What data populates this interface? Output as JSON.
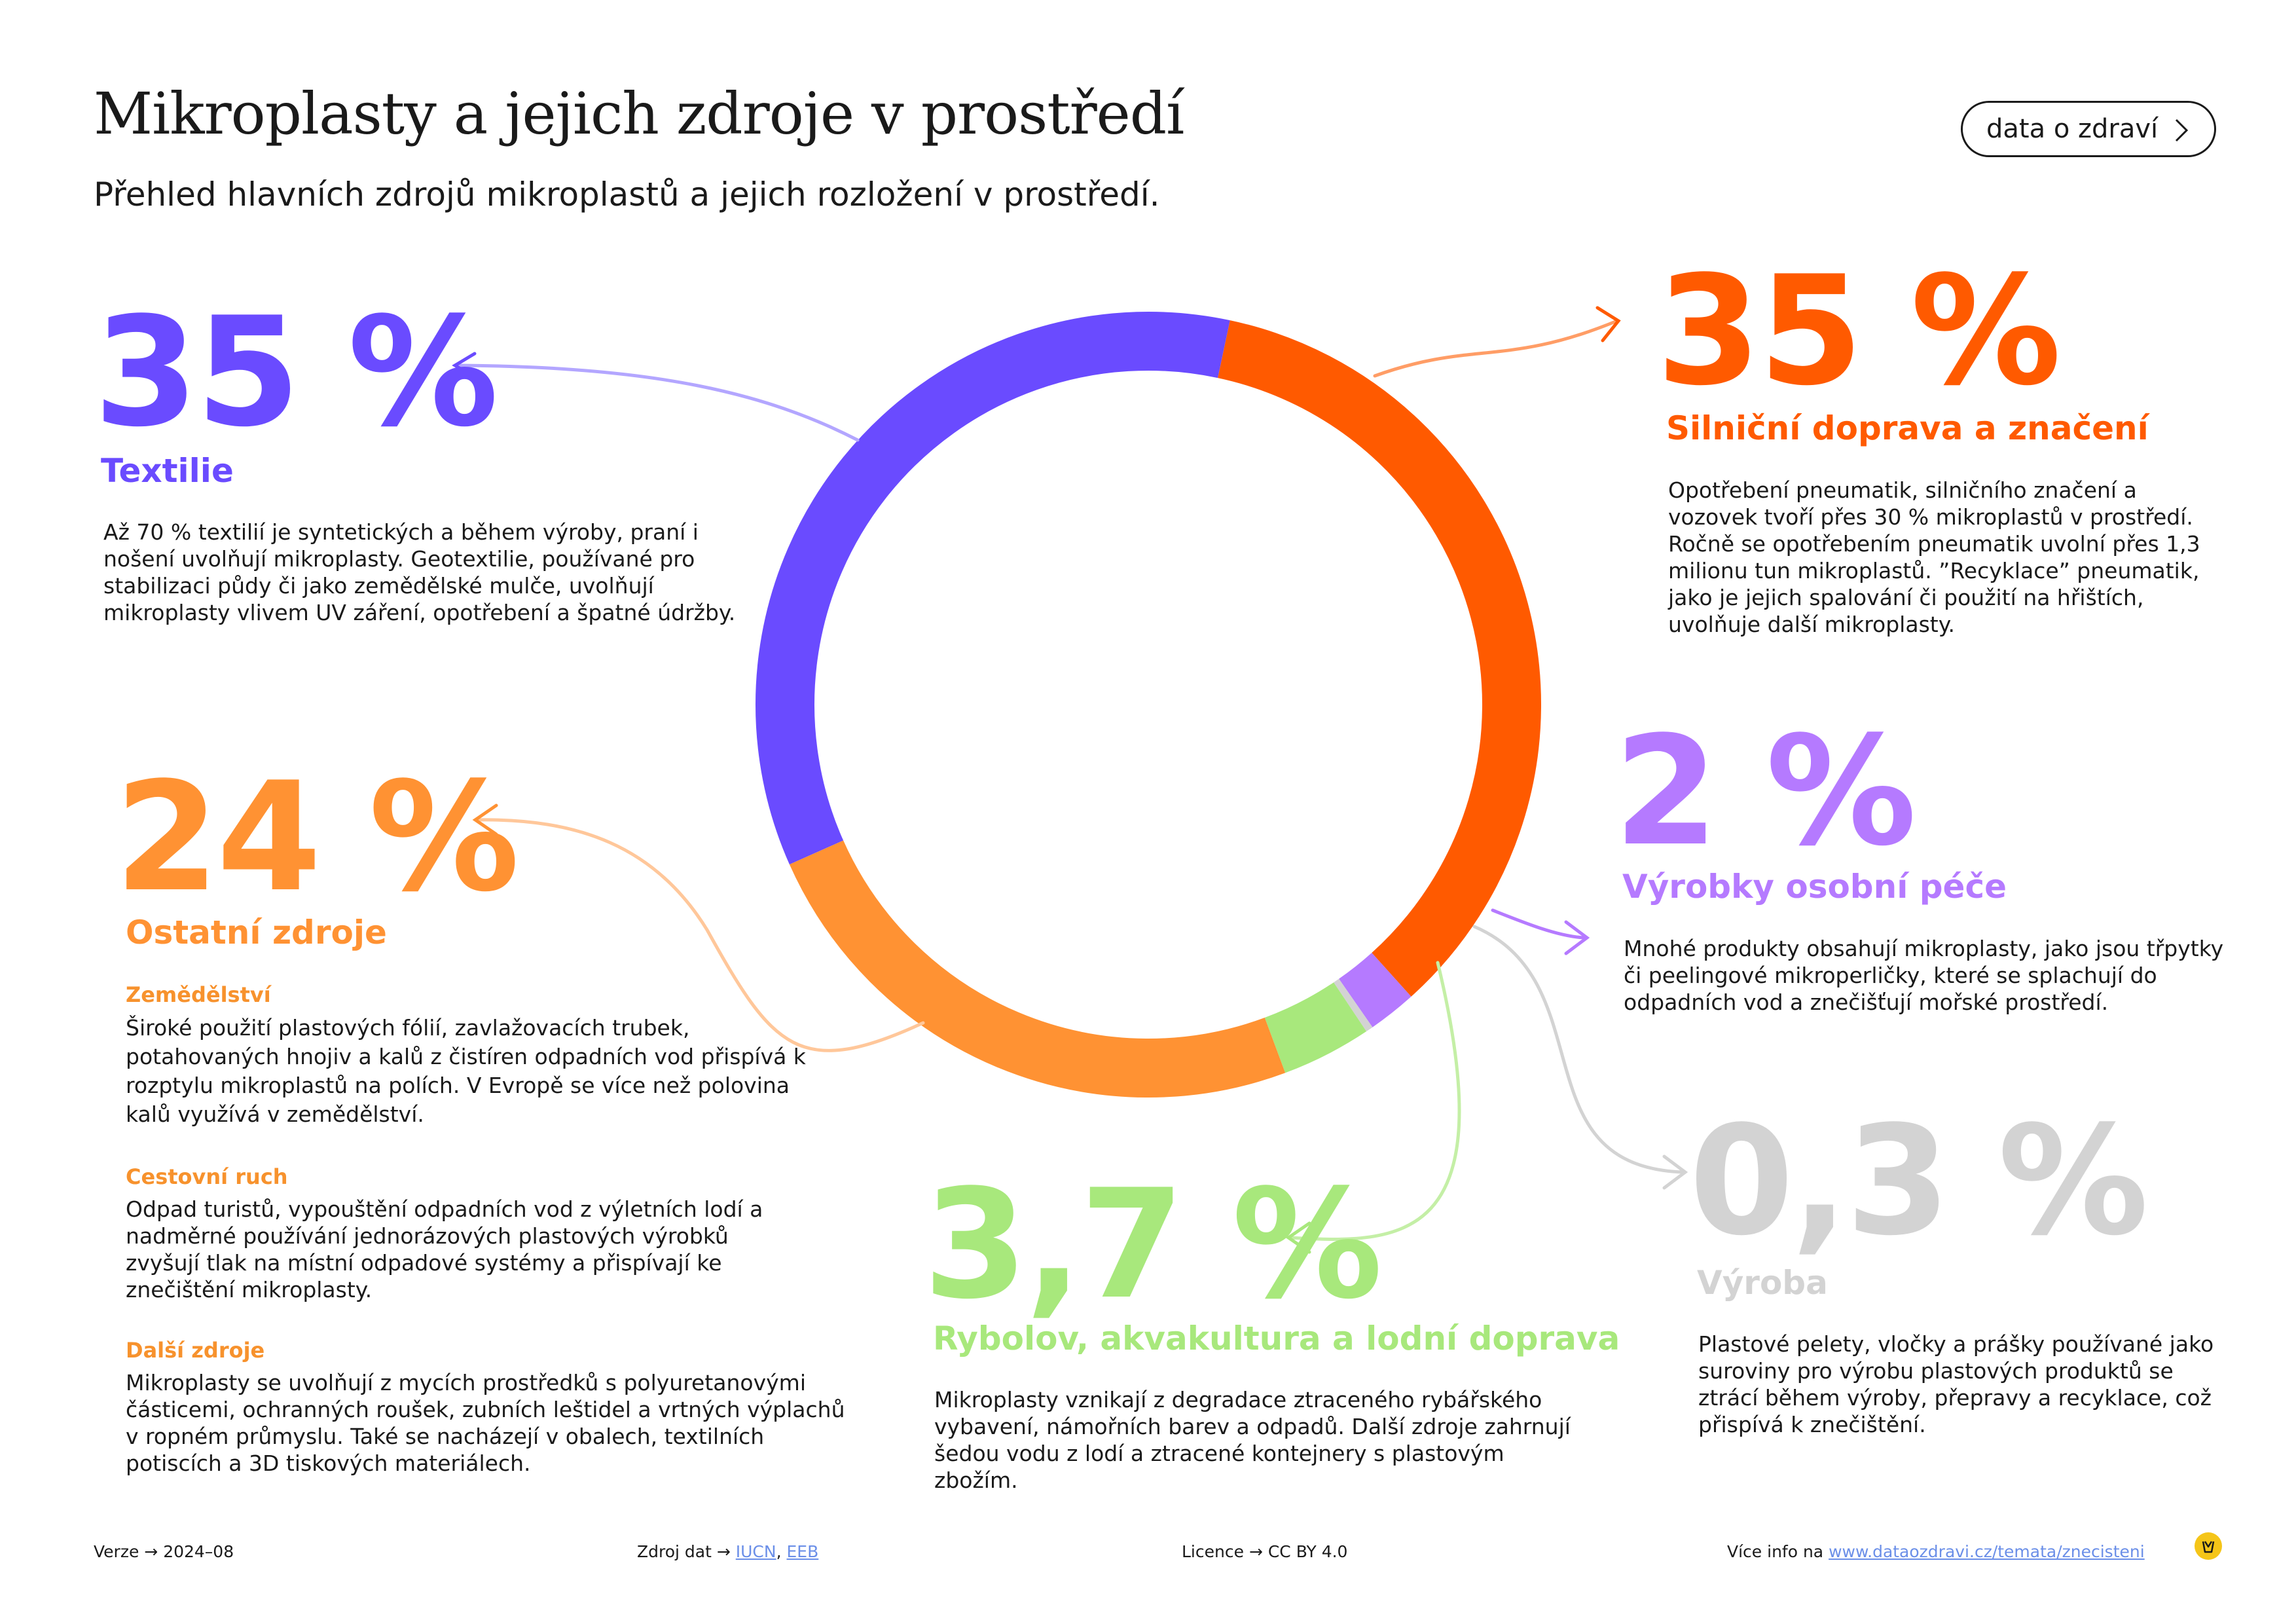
{
  "page": {
    "title": "Mikroplasty a jejich zdroje v prostředí",
    "subtitle": "Přehled hlavních zdrojů mikroplastů a jejich rozložení v prostředí.",
    "pill_label": "data o zdraví"
  },
  "chart_data": {
    "type": "pie",
    "variant": "donut",
    "title": "Mikroplasty a jejich zdroje v prostředí",
    "unit": "%",
    "slices": [
      {
        "name": "Silniční doprava a značení",
        "value": 35,
        "label": "35 %",
        "color": "#ff5a00"
      },
      {
        "name": "Výrobky osobní péče",
        "value": 2,
        "label": "2 %",
        "color": "#b57aff"
      },
      {
        "name": "Výroba",
        "value": 0.3,
        "label": "0,3 %",
        "color": "#d3d3d3"
      },
      {
        "name": "Rybolov, akvakultura a lodní doprava",
        "value": 3.7,
        "label": "3,7 %",
        "color": "#a8e87c"
      },
      {
        "name": "Ostatní zdroje",
        "value": 24,
        "label": "24 %",
        "color": "#ff9233"
      },
      {
        "name": "Textilie",
        "value": 35,
        "label": "35 %",
        "color": "#6a4bff"
      }
    ]
  },
  "sections": {
    "textilie": {
      "description": "Až 70 % textilií je syntetických a během výroby, praní i nošení uvolňují mikroplasty. Geotextilie, používané pro stabilizaci půdy či jako zemědělské mulče, uvolňují mikroplasty vlivem UV záření, opotřebení a špatné údržby."
    },
    "doprava": {
      "description": "Opotřebení pneumatik, silničního značení a vozovek tvoří přes 30 % mikroplastů v prostředí. Ročně se opotřebením pneumatik uvolní přes 1,3 milionu tun mikroplastů. ”Recyklace” pneumatik, jako je jejich spalování či použití na hřištích, uvolňuje další mikroplasty."
    },
    "pece": {
      "description": "Mnohé produkty obsahují mikroplasty, jako jsou třpytky či peelingové mikroperličky, které se splachují do odpadních vod a znečišťují mořské prostředí."
    },
    "vyroba": {
      "description": "Plastové pelety, vločky a prášky používané jako suroviny pro výrobu plastových produktů se ztrácí během výroby, přepravy a recyklace, což přispívá k znečištění."
    },
    "rybolov": {
      "description": "Mikroplasty vznikají z degradace ztraceného rybářského vybavení, námořních barev a odpadů. Další zdroje zahrnují šedou vodu z lodí a ztracené kontejnery s plastovým zbožím."
    },
    "ostatni": {
      "items": [
        {
          "heading": "Zemědělství",
          "text": "Široké použití plastových fólií, zavlažovacích trubek, potahovaných hnojiv a kalů z čistíren odpadních vod přispívá k rozptylu mikroplastů na polích. V Evropě se více než polovina kalů využívá v zemědělství."
        },
        {
          "heading": "Cestovní ruch",
          "text": "Odpad turistů, vypouštění odpadních vod z výletních lodí a nadměrné používání jednorázových plastových výrobků zvyšují tlak na místní odpadové systémy a přispívají ke znečištění mikroplasty."
        },
        {
          "heading": "Další zdroje",
          "text": "Mikroplasty se uvolňují z mycích prostředků s polyuretanovými částicemi, ochranných roušek, zubních leštidel a vrtných výplachů v ropném průmyslu. Také se nacházejí v obalech, textilních potiscích a 3D tiskových materiálech."
        }
      ]
    }
  },
  "footer": {
    "version_label": "Verze",
    "version": "2024–08",
    "source_label": "Zdroj dat",
    "source_1": "IUCN",
    "source_sep": ",",
    "source_2": "EEB",
    "license_label": "Licence",
    "license": "CC BY 4.0",
    "more_label": "Více info na",
    "more_url": "www.dataozdravi.cz/temata/znecisteni",
    "arrow": "→"
  }
}
